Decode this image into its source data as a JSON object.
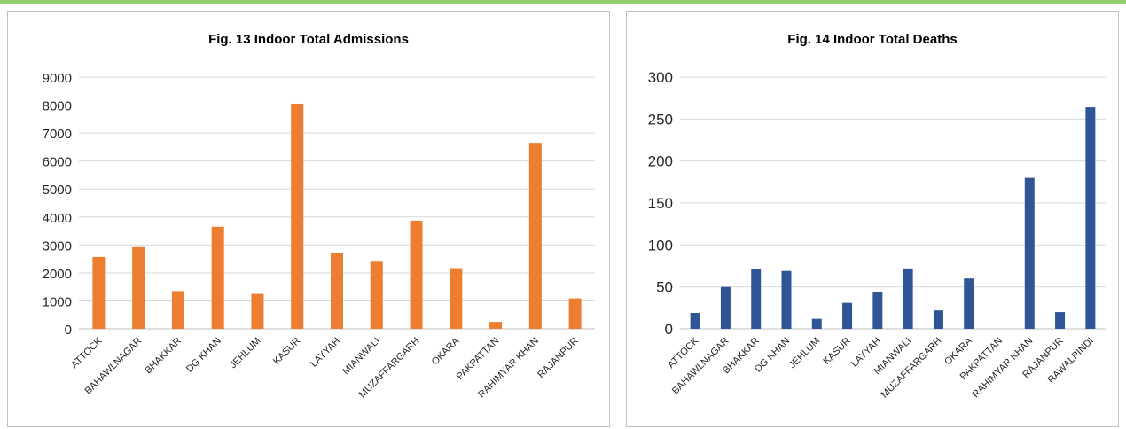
{
  "chart_data": [
    {
      "type": "bar",
      "title": "Fig. 13 Indoor Total Admissions",
      "categories": [
        "ATTOCK",
        "BAHAWLNAGAR",
        "BHAKKAR",
        "DG KHAN",
        "JEHLUM",
        "KASUR",
        "LAYYAH",
        "MIANWALI",
        "MUZAFFARGARH",
        "OKARA",
        "PAKPATTAN",
        "RAHIMYAR KHAN",
        "RAJANPUR"
      ],
      "values": [
        2570,
        2920,
        1350,
        3650,
        1250,
        8050,
        2700,
        2400,
        3870,
        2170,
        250,
        6650,
        1090
      ],
      "ylim": [
        0,
        9000
      ],
      "yticks": [
        0,
        1000,
        2000,
        3000,
        4000,
        5000,
        6000,
        7000,
        8000,
        9000
      ],
      "color": "#ed7d31",
      "grid": true
    },
    {
      "type": "bar",
      "title": "Fig. 14 Indoor Total Deaths",
      "categories": [
        "ATTOCK",
        "BAHAWLNAGAR",
        "BHAKKAR",
        "DG KHAN",
        "JEHLUM",
        "KASUR",
        "LAYYAH",
        "MIANWALI",
        "MUZAFFARGARH",
        "OKARA",
        "PAKPATTAN",
        "RAHIMYAR KHAN",
        "RAJANPUR",
        "RAWALPINDI"
      ],
      "values": [
        19,
        50,
        71,
        69,
        12,
        31,
        44,
        72,
        22,
        60,
        0,
        180,
        20,
        264
      ],
      "ylim": [
        0,
        300
      ],
      "yticks": [
        0,
        50,
        100,
        150,
        200,
        250,
        300
      ],
      "color": "#2f5597",
      "grid": true
    }
  ]
}
